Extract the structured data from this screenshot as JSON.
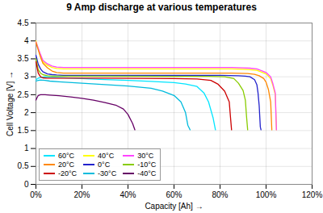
{
  "chart_data": {
    "type": "line",
    "title": "9 Amp discharge at various temperatures",
    "xlabel": "Capacity [Ah]",
    "ylabel": "Cell Voltage [V]",
    "xlim": [
      0,
      1.2
    ],
    "ylim": [
      0,
      4.5
    ],
    "xticks": [
      {
        "value": 0.0,
        "label": "0%"
      },
      {
        "value": 0.2,
        "label": "20%"
      },
      {
        "value": 0.4,
        "label": "40%"
      },
      {
        "value": 0.6,
        "label": "60%"
      },
      {
        "value": 0.8,
        "label": "80%"
      },
      {
        "value": 1.0,
        "label": "100%"
      },
      {
        "value": 1.2,
        "label": "120%"
      }
    ],
    "yticks": [
      0,
      0.5,
      1,
      1.5,
      2,
      2.5,
      3,
      3.5,
      4,
      4.5
    ],
    "grid": true,
    "legend": "lower left",
    "series": [
      {
        "name": "60°C",
        "color": "#00e5ff",
        "x": [
          0.0,
          0.01,
          0.02,
          0.04,
          0.06,
          0.1,
          0.2,
          0.3,
          0.4,
          0.5,
          0.6,
          0.65,
          0.7,
          0.73,
          0.75,
          0.77,
          0.78
        ],
        "values": [
          2.92,
          2.96,
          2.98,
          3.0,
          2.99,
          2.98,
          2.95,
          2.92,
          2.9,
          2.87,
          2.84,
          2.8,
          2.73,
          2.55,
          2.3,
          1.85,
          1.52
        ]
      },
      {
        "name": "40°C",
        "color": "#ffff00",
        "x": [
          0.0,
          0.01,
          0.02,
          0.03,
          0.05,
          0.07,
          0.09,
          0.12,
          0.3,
          0.6,
          0.85,
          0.9,
          0.93,
          0.96,
          0.98,
          1.0,
          1.02,
          1.03,
          1.04,
          1.045
        ],
        "values": [
          4.0,
          3.78,
          3.56,
          3.42,
          3.32,
          3.26,
          3.23,
          3.22,
          3.22,
          3.22,
          3.22,
          3.21,
          3.2,
          3.18,
          3.13,
          3.08,
          2.95,
          2.75,
          2.5,
          1.52
        ]
      },
      {
        "name": "30°C",
        "color": "#ff44ff",
        "x": [
          0.0,
          0.01,
          0.02,
          0.03,
          0.05,
          0.07,
          0.09,
          0.12,
          0.3,
          0.6,
          0.85,
          0.9,
          0.93,
          0.96,
          0.98,
          1.0,
          1.02,
          1.03,
          1.04,
          1.045
        ],
        "values": [
          3.97,
          3.8,
          3.62,
          3.46,
          3.36,
          3.3,
          3.27,
          3.26,
          3.26,
          3.26,
          3.26,
          3.25,
          3.24,
          3.22,
          3.17,
          3.12,
          3.0,
          2.8,
          2.55,
          1.52
        ]
      },
      {
        "name": "20°C",
        "color": "#ff8800",
        "x": [
          0.0,
          0.01,
          0.02,
          0.03,
          0.05,
          0.07,
          0.09,
          0.12,
          0.3,
          0.6,
          0.85,
          0.92,
          0.95,
          0.97,
          0.99,
          1.0,
          1.01,
          1.02,
          1.025
        ],
        "values": [
          3.95,
          3.75,
          3.55,
          3.38,
          3.25,
          3.16,
          3.12,
          3.1,
          3.1,
          3.1,
          3.1,
          3.09,
          3.07,
          3.03,
          2.95,
          2.85,
          2.65,
          2.3,
          1.52
        ]
      },
      {
        "name": "0°C",
        "color": "#2222cc",
        "x": [
          0.0,
          0.01,
          0.02,
          0.03,
          0.05,
          0.07,
          0.09,
          0.12,
          0.3,
          0.6,
          0.8,
          0.88,
          0.91,
          0.93,
          0.95,
          0.96,
          0.965,
          0.97,
          0.975,
          0.978
        ],
        "values": [
          3.6,
          3.35,
          3.22,
          3.14,
          3.08,
          3.06,
          3.05,
          3.04,
          3.04,
          3.04,
          3.04,
          3.03,
          3.02,
          3.0,
          2.92,
          2.78,
          2.55,
          2.2,
          1.6,
          1.52
        ]
      },
      {
        "name": "-10°C",
        "color": "#88cc00",
        "x": [
          0.0,
          0.01,
          0.02,
          0.03,
          0.05,
          0.07,
          0.09,
          0.12,
          0.3,
          0.6,
          0.75,
          0.82,
          0.86,
          0.88,
          0.9,
          0.91,
          0.915,
          0.92
        ],
        "values": [
          3.5,
          3.2,
          3.1,
          3.06,
          3.03,
          3.02,
          3.02,
          3.02,
          3.02,
          3.01,
          3.01,
          3.0,
          2.95,
          2.82,
          2.62,
          2.35,
          1.9,
          1.52
        ]
      },
      {
        "name": "-20°C",
        "color": "#cc0000",
        "x": [
          0.0,
          0.01,
          0.02,
          0.03,
          0.05,
          0.07,
          0.09,
          0.12,
          0.3,
          0.6,
          0.7,
          0.76,
          0.79,
          0.82,
          0.84,
          0.845,
          0.85
        ],
        "values": [
          3.42,
          3.1,
          3.0,
          2.97,
          2.96,
          2.96,
          2.96,
          2.96,
          2.96,
          2.95,
          2.94,
          2.9,
          2.8,
          2.6,
          2.3,
          1.9,
          1.52
        ]
      },
      {
        "name": "-30°C",
        "color": "#00bbdd",
        "x": [
          0.0,
          0.01,
          0.02,
          0.04,
          0.06,
          0.1,
          0.2,
          0.3,
          0.4,
          0.5,
          0.55,
          0.6,
          0.63,
          0.65,
          0.66,
          0.67
        ],
        "values": [
          2.88,
          2.9,
          2.91,
          2.9,
          2.88,
          2.86,
          2.82,
          2.78,
          2.74,
          2.68,
          2.6,
          2.48,
          2.3,
          2.0,
          1.65,
          1.52
        ]
      },
      {
        "name": "-40°C",
        "color": "#660066",
        "x": [
          0.0,
          0.005,
          0.01,
          0.02,
          0.04,
          0.06,
          0.1,
          0.15,
          0.2,
          0.25,
          0.3,
          0.35,
          0.38,
          0.4,
          0.42,
          0.43
        ],
        "values": [
          2.35,
          2.42,
          2.48,
          2.5,
          2.5,
          2.49,
          2.47,
          2.44,
          2.4,
          2.35,
          2.28,
          2.2,
          2.1,
          1.95,
          1.7,
          1.52
        ]
      }
    ]
  }
}
